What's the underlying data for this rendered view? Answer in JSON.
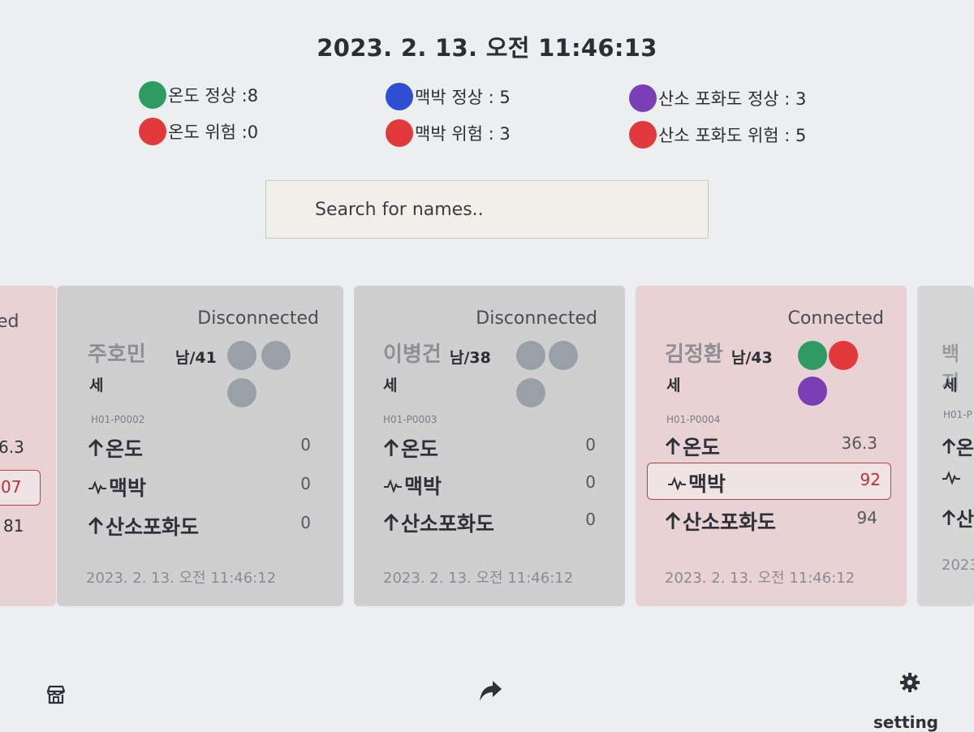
{
  "header": {
    "datetime": "2023. 2. 13. 오전 11:46:13"
  },
  "legend": {
    "temp_ok": "온도 정상 :8",
    "temp_danger": "온도 위험 :0",
    "pulse_ok": "맥박 정상 : 5",
    "pulse_danger": "맥박 위험 : 3",
    "spo2_ok": "산소 포화도 정상 : 3",
    "spo2_danger": "산소 포화도 위험 : 5"
  },
  "colors": {
    "green": "#2e9b63",
    "red": "#e23a3c",
    "blue": "#2f4fd3",
    "purple": "#7a3fb6",
    "gray_dot": "#9aa0a8",
    "card_gray": "#cfcfcf",
    "card_pink": "#e8d2d4"
  },
  "search": {
    "placeholder": "Search for names.."
  },
  "left_partial_card": {
    "status": "ed",
    "temp": "6.3",
    "pulse": "07",
    "spo2": "81"
  },
  "cards": [
    {
      "status": "Disconnected",
      "name": "주호민",
      "info": "남/41",
      "age_suffix": "세",
      "patient_id": "H01-P0002",
      "temp_label": "온도",
      "temp_value": "0",
      "pulse_label": "맥박",
      "pulse_value": "0",
      "spo2_label": "산소포화도",
      "spo2_value": "0",
      "timestamp": "2023. 2. 13. 오전 11:46:12"
    },
    {
      "status": "Disconnected",
      "name": "이병건",
      "info": "남/38",
      "age_suffix": "세",
      "patient_id": "H01-P0003",
      "temp_label": "온도",
      "temp_value": "0",
      "pulse_label": "맥박",
      "pulse_value": "0",
      "spo2_label": "산소포화도",
      "spo2_value": "0",
      "timestamp": "2023. 2. 13. 오전 11:46:12"
    },
    {
      "status": "Connected",
      "name": "김정환",
      "info": "남/43",
      "age_suffix": "세",
      "patient_id": "H01-P0004",
      "temp_label": "온도",
      "temp_value": "36.3",
      "pulse_label": "맥박",
      "pulse_value": "92",
      "spo2_label": "산소포화도",
      "spo2_value": "94",
      "timestamp": "2023. 2. 13. 오전 11:46:12"
    }
  ],
  "right_partial_card": {
    "name": "백지",
    "age_suffix": "세",
    "patient_id": "H01-P",
    "temp_label": "온",
    "spo2_label": "산",
    "timestamp": "2023."
  },
  "bottom_nav": {
    "home_icon": "store-icon",
    "share_icon": "share-arrow-icon",
    "settings_icon": "gear-icon",
    "settings_label": "setting"
  }
}
